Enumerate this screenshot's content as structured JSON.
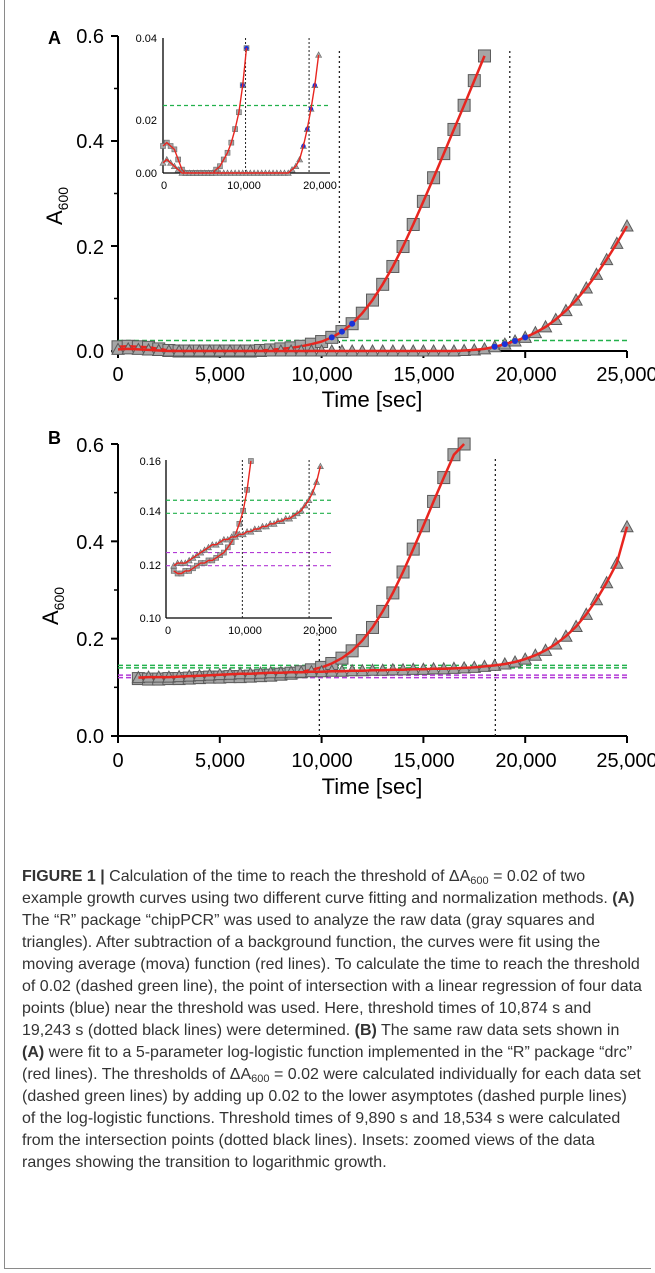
{
  "chart_data": [
    {
      "panel": "A",
      "type": "scatter",
      "xlabel": "Time [sec]",
      "ylabel": "A600",
      "xlim": [
        0,
        25000
      ],
      "ylim": [
        0,
        0.6
      ],
      "xticks": [
        "0",
        "5,000",
        "10,000",
        "15,000",
        "20,000",
        "25,000"
      ],
      "yticks": [
        "0.0",
        "0.2",
        "0.4",
        "0.6"
      ],
      "threshold": 0.02,
      "threshold_times": [
        10874,
        19243
      ],
      "series": [
        {
          "marker": "square",
          "x": [
            0,
            500,
            1000,
            1500,
            2000,
            2500,
            3000,
            3500,
            4000,
            4500,
            5000,
            5500,
            6000,
            6500,
            7000,
            7500,
            8000,
            8500,
            9000,
            9500,
            10000,
            10500,
            11000,
            11500,
            12000,
            12500,
            13000,
            13500,
            14000,
            14500,
            15000,
            15500,
            16000,
            16500,
            17000,
            17500,
            18000
          ],
          "y": [
            0.008,
            0.009,
            0.008,
            0.007,
            0.004,
            0.001,
            -0.001,
            0.0,
            0.0,
            0.0,
            0.0,
            0.0,
            0.0,
            0.0,
            0.001,
            0.002,
            0.004,
            0.006,
            0.009,
            0.013,
            0.018,
            0.026,
            0.037,
            0.052,
            0.072,
            0.097,
            0.127,
            0.161,
            0.199,
            0.241,
            0.285,
            0.33,
            0.376,
            0.422,
            0.468,
            0.515,
            0.562
          ]
        },
        {
          "marker": "triangle",
          "x": [
            0,
            500,
            1000,
            1500,
            2000,
            2500,
            3000,
            3500,
            4000,
            4500,
            5000,
            5500,
            6000,
            6500,
            7000,
            7500,
            8000,
            8500,
            9000,
            9500,
            10000,
            10500,
            11000,
            11500,
            12000,
            12500,
            13000,
            13500,
            14000,
            14500,
            15000,
            15500,
            16000,
            16500,
            17000,
            17500,
            18000,
            18500,
            19000,
            19500,
            20000,
            20500,
            21000,
            21500,
            22000,
            22500,
            23000,
            23500,
            24000,
            24500,
            25000
          ],
          "y": [
            0.003,
            0.004,
            0.003,
            0.002,
            0.001,
            0.0,
            0.0,
            0.0,
            0.0,
            0.0,
            0.0,
            0.0,
            0.0,
            0.0,
            0.0,
            0.0,
            0.0,
            0.0,
            0.0,
            0.0,
            0.0,
            0.0,
            0.0,
            0.0,
            0.0,
            0.0,
            0.0,
            0.0,
            0.0,
            0.0,
            0.0,
            0.0,
            0.0,
            0.0,
            0.001,
            0.002,
            0.004,
            0.008,
            0.013,
            0.019,
            0.026,
            0.035,
            0.046,
            0.06,
            0.077,
            0.097,
            0.12,
            0.146,
            0.174,
            0.205,
            0.238
          ]
        }
      ]
    },
    {
      "panel": "B",
      "type": "scatter",
      "xlabel": "Time [sec]",
      "ylabel": "A600",
      "xlim": [
        0,
        25000
      ],
      "ylim": [
        0,
        0.6
      ],
      "xticks": [
        "0",
        "5,000",
        "10,000",
        "15,000",
        "20,000",
        "25,000"
      ],
      "yticks": [
        "0.0",
        "0.2",
        "0.4",
        "0.6"
      ],
      "lower_asymptotes": [
        0.12,
        0.125
      ],
      "thresholds": [
        0.14,
        0.145
      ],
      "threshold_times": [
        9890,
        18534
      ],
      "series": [
        {
          "marker": "square",
          "x": [
            1000,
            1500,
            2000,
            2500,
            3000,
            3500,
            4000,
            4500,
            5000,
            5500,
            6000,
            6500,
            7000,
            7500,
            8000,
            8500,
            9000,
            9500,
            10000,
            10500,
            11000,
            11500,
            12000,
            12500,
            13000,
            13500,
            14000,
            14500,
            15000,
            15500,
            16000,
            16500,
            17000
          ],
          "y": [
            0.118,
            0.117,
            0.117,
            0.118,
            0.118,
            0.119,
            0.12,
            0.121,
            0.121,
            0.122,
            0.122,
            0.123,
            0.124,
            0.125,
            0.127,
            0.129,
            0.132,
            0.136,
            0.141,
            0.149,
            0.16,
            0.175,
            0.196,
            0.223,
            0.256,
            0.294,
            0.337,
            0.384,
            0.432,
            0.482,
            0.531,
            0.578,
            0.6
          ]
        },
        {
          "marker": "triangle",
          "x": [
            1000,
            1500,
            2000,
            2500,
            3000,
            3500,
            4000,
            4500,
            5000,
            5500,
            6000,
            6500,
            7000,
            7500,
            8000,
            8500,
            9000,
            9500,
            10000,
            10500,
            11000,
            11500,
            12000,
            12500,
            13000,
            13500,
            14000,
            14500,
            15000,
            15500,
            16000,
            16500,
            17000,
            17500,
            18000,
            18500,
            19000,
            19500,
            20000,
            20500,
            21000,
            21500,
            22000,
            22500,
            23000,
            23500,
            24000,
            24500,
            25000
          ],
          "y": [
            0.12,
            0.121,
            0.121,
            0.121,
            0.122,
            0.123,
            0.124,
            0.125,
            0.126,
            0.127,
            0.128,
            0.128,
            0.129,
            0.13,
            0.13,
            0.131,
            0.131,
            0.132,
            0.132,
            0.133,
            0.133,
            0.134,
            0.134,
            0.135,
            0.135,
            0.136,
            0.136,
            0.137,
            0.137,
            0.138,
            0.138,
            0.139,
            0.14,
            0.141,
            0.143,
            0.145,
            0.148,
            0.152,
            0.158,
            0.166,
            0.176,
            0.189,
            0.205,
            0.225,
            0.25,
            0.28,
            0.315,
            0.355,
            0.43
          ]
        }
      ]
    }
  ],
  "panels": {
    "a_label": "A",
    "b_label": "B",
    "xlabel": "Time [sec]",
    "ylabel_main": "A",
    "ylabel_sub": "600",
    "a_inset_yticks": [
      "0.04",
      "0.02",
      "0.00"
    ],
    "a_inset_xticks": [
      "0",
      "10,000",
      "20,000"
    ],
    "b_inset_yticks": [
      "0.16",
      "0.14",
      "0.12",
      "0.10"
    ],
    "b_inset_xticks": [
      "0",
      "10,000",
      "20,000"
    ]
  },
  "colors": {
    "fit": "#e8251f",
    "threshold": "#22b14c",
    "asymptote": "#b23ad6",
    "regression_points": "#1a32d8",
    "markers": "#a6a6a6"
  },
  "caption": {
    "label": "FIGURE 1 |",
    "p1a": "Calculation of the time to reach the threshold of ΔA",
    "sub600": "600",
    "p1b": "= 0.02 of two example growth curves using two different curve fitting and normalization methods.",
    "a_tag": "(A)",
    "p2": "The “R” package “chipPCR” was used to analyze the raw data (gray squares and triangles). After subtraction of a background function, the curves were fit using the moving average (mova) function (red lines). To calculate the time to reach the threshold of 0.02 (dashed green line), the point of intersection with a linear regression of four data points (blue) near the threshold was used. Here, threshold times of 10,874 s and 19,243 s (dotted black lines) were determined.",
    "b_tag": "(B)",
    "p3a": "The same raw data sets shown in",
    "a_ref": "(A)",
    "p3b": "were fit to a 5-parameter log-logistic function implemented in the “R” package “drc” (red lines). The thresholds of ΔA",
    "p3c": "= 0.02 were calculated individually for each data set (dashed green lines) by adding up 0.02 to the lower asymptotes (dashed purple lines) of the log-logistic functions. Threshold times of 9,890 s and 18,534 s were calculated from the intersection points (dotted black lines). Insets: zoomed views of the data ranges showing the transition to logarithmic growth."
  }
}
